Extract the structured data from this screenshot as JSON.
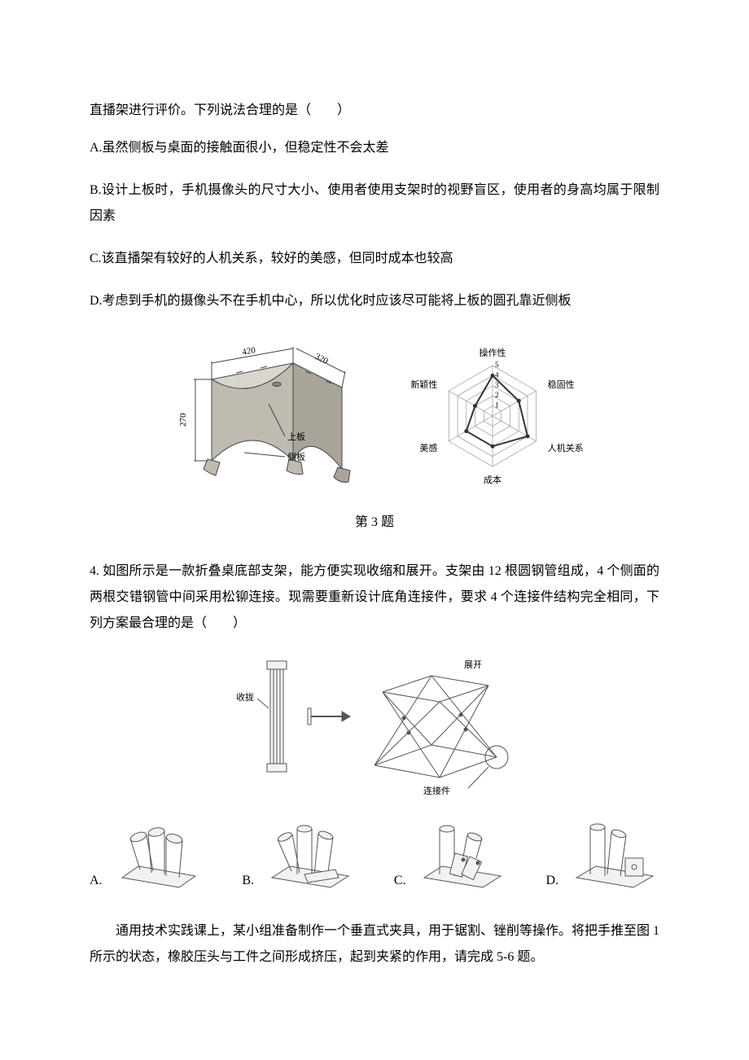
{
  "colors": {
    "text": "#000000",
    "bg": "#ffffff",
    "svg_stroke": "#444444",
    "svg_fill_light": "#d9d6cf",
    "svg_fill_mid": "#bfbbb0",
    "svg_fill_dark": "#a8a49a",
    "radar_axis": "#888888",
    "radar_line": "#333333",
    "q4_stroke": "#555555",
    "q4_fill": "#f2f2f2"
  },
  "q3": {
    "intro": "直播架进行评价。下列说法合理的是（　　）",
    "options": {
      "A": "A.虽然侧板与桌面的接触面很小，但稳定性不会太差",
      "B": "B.设计上板时，手机摄像头的尺寸大小、使用者使用支架时的视野盲区，使用者的身高均属于限制因素",
      "C": "C.该直播架有较好的人机关系，较好的美感，但同时成本也较高",
      "D": "D.考虑到手机的摄像头不在手机中心，所以优化时应该尽可能将上板的圆孔靠近侧板"
    },
    "caption": "第 3 题",
    "dims": {
      "w": "420",
      "d": "320",
      "h": "270"
    },
    "labels": {
      "top": "上板",
      "side": "侧板"
    },
    "radar": {
      "axes": [
        "操作性",
        "稳固性",
        "人机关系",
        "成本",
        "美感",
        "新颖性"
      ],
      "rings": [
        "1",
        "2",
        "3",
        "4",
        "5"
      ],
      "max": 5,
      "values": [
        4,
        3,
        4,
        3,
        3,
        2
      ],
      "axis_color": "#888888",
      "line_color": "#333333",
      "label_fontsize": 11
    }
  },
  "q4": {
    "text": "4.  如图所示是一款折叠桌底部支架，能方便实现收缩和展开。支架由 12 根圆钢管组成，4 个侧面的两根交错钢管中间采用松铆连接。现需要重新设计底角连接件，要求 4 个连接件结构完全相同，下列方案最合理的是（　　）",
    "labels": {
      "collapse": "收拢",
      "expand": "展开",
      "connector": "连接件"
    },
    "options": {
      "A": "A.",
      "B": "B.",
      "C": "C.",
      "D": "D."
    }
  },
  "q56": {
    "text": "通用技术实践课上，某小组准备制作一个垂直式夹具，用于锯割、锉削等操作。将把手推至图 1 所示的状态，橡胶压头与工件之间形成挤压，起到夹紧的作用，请完成 5-6 题。"
  }
}
